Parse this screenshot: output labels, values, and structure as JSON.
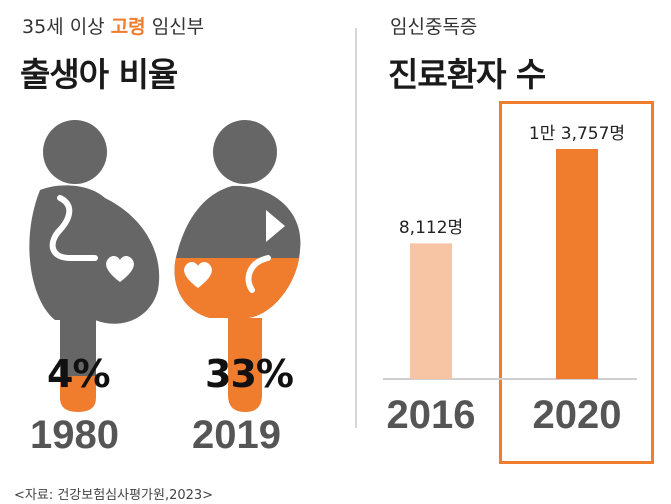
{
  "left": {
    "subtitle_pre": "35세 이상 ",
    "subtitle_accent": "고령",
    "subtitle_post": " 임신부",
    "title": "출생아 비율"
  },
  "right": {
    "subtitle": "임신중독증",
    "title": "진료환자 수"
  },
  "source": "<자료: 건강보험심사평가원,2023>",
  "colors": {
    "gray": "#666666",
    "orange": "#f07c2e",
    "light_orange": "#f7c4a4",
    "text": "#222222"
  },
  "chart_data": [
    {
      "type": "pictograph",
      "title": "35세 이상 고령 임신부 출생아 비율",
      "categories": [
        "1980",
        "2019"
      ],
      "values": [
        4,
        33
      ],
      "value_labels": [
        "4%",
        "33%"
      ],
      "unit": "%"
    },
    {
      "type": "bar",
      "title": "임신중독증 진료환자 수",
      "categories": [
        "2016",
        "2020"
      ],
      "values": [
        8112,
        13757
      ],
      "value_labels": [
        "8,112명",
        "1만 3,757명"
      ],
      "highlight": "2020"
    }
  ]
}
